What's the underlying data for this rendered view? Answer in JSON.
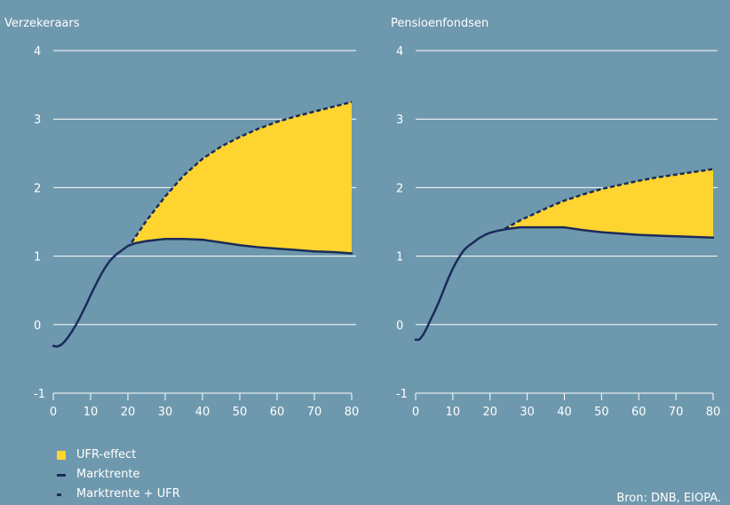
{
  "chart_data": [
    {
      "type": "line",
      "title": "Verzekeraars",
      "xlim": [
        0,
        80
      ],
      "ylim": [
        -1,
        4
      ],
      "x_ticks": [
        0,
        10,
        20,
        30,
        40,
        50,
        60,
        70,
        80
      ],
      "y_ticks": [
        -1,
        0,
        1,
        2,
        3,
        4
      ],
      "grid": true,
      "series": [
        {
          "name": "Marktrente",
          "x": [
            0,
            1,
            2,
            3,
            4,
            5,
            6,
            7,
            8,
            9,
            10,
            11,
            12,
            13,
            14,
            15,
            16,
            17,
            18,
            19,
            20,
            22,
            25,
            28,
            30,
            35,
            40,
            45,
            50,
            55,
            60,
            65,
            70,
            75,
            80
          ],
          "values": [
            -0.31,
            -0.32,
            -0.3,
            -0.25,
            -0.18,
            -0.1,
            -0.01,
            0.09,
            0.2,
            0.31,
            0.43,
            0.54,
            0.65,
            0.75,
            0.84,
            0.92,
            0.98,
            1.03,
            1.07,
            1.11,
            1.15,
            1.19,
            1.22,
            1.24,
            1.25,
            1.25,
            1.24,
            1.2,
            1.16,
            1.13,
            1.11,
            1.09,
            1.07,
            1.06,
            1.04
          ]
        },
        {
          "name": "Marktrente + UFR",
          "x": [
            21,
            25,
            30,
            35,
            40,
            45,
            50,
            55,
            60,
            65,
            70,
            75,
            80
          ],
          "values": [
            1.2,
            1.52,
            1.87,
            2.18,
            2.42,
            2.6,
            2.74,
            2.86,
            2.96,
            3.04,
            3.11,
            3.18,
            3.25
          ]
        }
      ],
      "fill_between": {
        "name": "UFR-effect",
        "lower": "Marktrente",
        "upper": "Marktrente + UFR",
        "x_start": 21
      }
    },
    {
      "type": "line",
      "title": "Pensioenfondsen",
      "xlim": [
        0,
        80
      ],
      "ylim": [
        -1,
        4
      ],
      "x_ticks": [
        0,
        10,
        20,
        30,
        40,
        50,
        60,
        70,
        80
      ],
      "y_ticks": [
        -1,
        0,
        1,
        2,
        3,
        4
      ],
      "grid": true,
      "series": [
        {
          "name": "Marktrente",
          "x": [
            0,
            1,
            2,
            3,
            4,
            5,
            6,
            7,
            8,
            9,
            10,
            11,
            12,
            13,
            14,
            15,
            16,
            17,
            18,
            19,
            20,
            22,
            25,
            28,
            30,
            35,
            40,
            45,
            50,
            55,
            60,
            65,
            70,
            75,
            80
          ],
          "values": [
            -0.22,
            -0.22,
            -0.15,
            -0.05,
            0.07,
            0.18,
            0.3,
            0.43,
            0.57,
            0.7,
            0.82,
            0.92,
            1.01,
            1.09,
            1.14,
            1.18,
            1.22,
            1.26,
            1.29,
            1.32,
            1.34,
            1.37,
            1.4,
            1.42,
            1.42,
            1.42,
            1.42,
            1.38,
            1.35,
            1.33,
            1.31,
            1.3,
            1.29,
            1.28,
            1.27
          ]
        },
        {
          "name": "Marktrente + UFR",
          "x": [
            24,
            28,
            32,
            36,
            40,
            45,
            50,
            55,
            60,
            65,
            70,
            75,
            80
          ],
          "values": [
            1.4,
            1.52,
            1.62,
            1.72,
            1.81,
            1.9,
            1.98,
            2.04,
            2.1,
            2.15,
            2.19,
            2.23,
            2.27
          ]
        }
      ],
      "fill_between": {
        "name": "UFR-effect",
        "lower": "Marktrente",
        "upper": "Marktrente + UFR",
        "x_start": 24
      }
    }
  ],
  "legend": {
    "placement": "bottom-left",
    "items": [
      {
        "label": "UFR-effect",
        "kind": "fill",
        "color": "#fed430"
      },
      {
        "label": "Marktrente",
        "kind": "line",
        "color": "#1a2b5a"
      },
      {
        "label": "Marktrente + UFR",
        "kind": "dashed",
        "color": "#1a2b5a"
      }
    ]
  },
  "source": "Bron: DNB, EIOPA.",
  "colors": {
    "background": "#6e98ad",
    "fill": "#fed430",
    "line": "#1a2b5a",
    "grid": "#ffffff"
  }
}
